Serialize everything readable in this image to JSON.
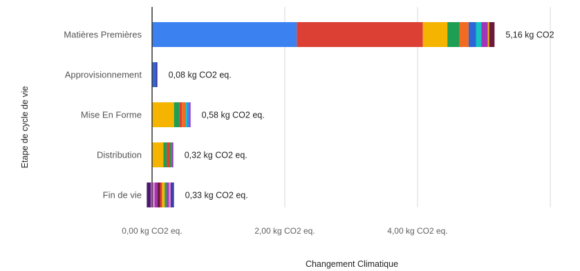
{
  "chart_data": {
    "type": "bar",
    "orientation": "horizontal",
    "stacked": true,
    "xlabel": "Changement Climatique",
    "ylabel": "Etape de cycle de vie",
    "xlim": [
      0,
      6
    ],
    "x_ticks": [
      {
        "value": 0,
        "label": "0,00 kg CO2 eq."
      },
      {
        "value": 2,
        "label": "2,00 kg CO2 eq."
      },
      {
        "value": 4,
        "label": "4,00 kg CO2 eq."
      },
      {
        "value": 6,
        "label": ""
      }
    ],
    "grid": true,
    "categories": [
      {
        "name": "Matières Premières",
        "total_label": "5,16 kg CO2",
        "segments": [
          {
            "value": 2.18,
            "color": "#3b82f0"
          },
          {
            "value": 1.9,
            "color": "#dc3f34"
          },
          {
            "value": 0.37,
            "color": "#f4b400"
          },
          {
            "value": 0.18,
            "color": "#1e9e52"
          },
          {
            "value": 0.14,
            "color": "#f26b22"
          },
          {
            "value": 0.11,
            "color": "#2d66d6"
          },
          {
            "value": 0.08,
            "color": "#16c2c2"
          },
          {
            "value": 0.1,
            "color": "#a234b8"
          },
          {
            "value": 0.02,
            "color": "#f4b400"
          },
          {
            "value": 0.08,
            "color": "#6a1b3a"
          }
        ]
      },
      {
        "name": "Approvisionnement",
        "total_label": "0,08 kg CO2 eq.",
        "segments": [
          {
            "value": 0.05,
            "color": "#2d66d6"
          },
          {
            "value": 0.03,
            "color": "#3b3fa8"
          }
        ]
      },
      {
        "name": "Mise En Forme",
        "total_label": "0,58 kg CO2 eq.",
        "segments": [
          {
            "value": 0.33,
            "color": "#f4b400"
          },
          {
            "value": 0.08,
            "color": "#1e9e52"
          },
          {
            "value": 0.04,
            "color": "#dc3f34"
          },
          {
            "value": 0.05,
            "color": "#f26b22"
          },
          {
            "value": 0.03,
            "color": "#16c2c2"
          },
          {
            "value": 0.03,
            "color": "#3b82f0"
          },
          {
            "value": 0.02,
            "color": "#a234b8"
          }
        ]
      },
      {
        "name": "Distribution",
        "total_label": "0,32 kg CO2 eq.",
        "segments": [
          {
            "value": 0.17,
            "color": "#f4b400"
          },
          {
            "value": 0.05,
            "color": "#1e9e52"
          },
          {
            "value": 0.05,
            "color": "#dc3f34"
          },
          {
            "value": 0.03,
            "color": "#1e9e52"
          },
          {
            "value": 0.02,
            "color": "#a234b8"
          }
        ]
      },
      {
        "name": "Fin  de vie",
        "total_label": "0,33 kg CO2 eq.",
        "offset": -0.08,
        "segments": [
          {
            "value": 0.06,
            "color": "#4a1a6e"
          },
          {
            "value": 0.06,
            "color": "#e07ad8"
          },
          {
            "value": 0.04,
            "color": "#a234b8"
          },
          {
            "value": 0.04,
            "color": "#6a1b3a"
          },
          {
            "value": 0.03,
            "color": "#dc3f34"
          },
          {
            "value": 0.04,
            "color": "#f4b400"
          },
          {
            "value": 0.03,
            "color": "#1e9e52"
          },
          {
            "value": 0.03,
            "color": "#a234b8"
          },
          {
            "value": 0.03,
            "color": "#e07ad8"
          },
          {
            "value": 0.05,
            "color": "#3b3fa8"
          }
        ]
      }
    ],
    "colors": {
      "gridline": "#d9d9d9",
      "zero_axis": "#333333"
    }
  }
}
